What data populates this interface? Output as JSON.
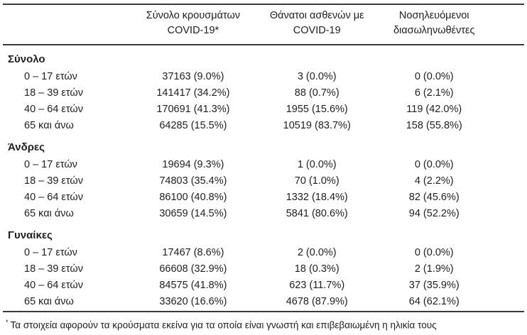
{
  "page": {
    "background": "#ffffff",
    "text_color": "#1f1f1f",
    "rule_color": "#3a3a3a"
  },
  "table": {
    "column_headers": [
      {
        "line1": "Σύνολο κρουσμάτων",
        "line2": "COVID-19*"
      },
      {
        "line1": "Θάνατοι ασθενών με",
        "line2": "COVID-19"
      },
      {
        "line1": "Νοσηλευόμενοι",
        "line2": "διασωληνωθέντες"
      }
    ],
    "groups": [
      {
        "label": "Σύνολο",
        "rows": [
          {
            "age": "0 – 17 ετών",
            "cases": "37163 (9.0%)",
            "deaths": "3 (0.0%)",
            "intubated": "0 (0.0%)"
          },
          {
            "age": "18 – 39 ετών",
            "cases": "141417 (34.2%)",
            "deaths": "88 (0.7%)",
            "intubated": "6 (2.1%)"
          },
          {
            "age": "40 – 64 ετών",
            "cases": "170691 (41.3%)",
            "deaths": "1955 (15.6%)",
            "intubated": "119 (42.0%)"
          },
          {
            "age": "65 και άνω",
            "cases": "64285 (15.5%)",
            "deaths": "10519 (83.7%)",
            "intubated": "158 (55.8%)"
          }
        ]
      },
      {
        "label": "Άνδρες",
        "rows": [
          {
            "age": "0 – 17 ετών",
            "cases": "19694 (9.3%)",
            "deaths": "1 (0.0%)",
            "intubated": "0 (0.0%)"
          },
          {
            "age": "18 – 39 ετών",
            "cases": "74803 (35.4%)",
            "deaths": "70 (1.0%)",
            "intubated": "4 (2.2%)"
          },
          {
            "age": "40 – 64 ετών",
            "cases": "86100 (40.8%)",
            "deaths": "1332 (18.4%)",
            "intubated": "82 (45.6%)"
          },
          {
            "age": "65 και άνω",
            "cases": "30659 (14.5%)",
            "deaths": "5841 (80.6%)",
            "intubated": "94 (52.2%)"
          }
        ]
      },
      {
        "label": "Γυναίκες",
        "rows": [
          {
            "age": "0 – 17 ετών",
            "cases": "17467 (8.6%)",
            "deaths": "2 (0.0%)",
            "intubated": "0 (0.0%)"
          },
          {
            "age": "18 – 39 ετών",
            "cases": "66608 (32.9%)",
            "deaths": "18 (0.3%)",
            "intubated": "2 (1.9%)"
          },
          {
            "age": "40 – 64 ετών",
            "cases": "84575 (41.8%)",
            "deaths": "623 (11.7%)",
            "intubated": "37 (35.9%)"
          },
          {
            "age": "65 και άνω",
            "cases": "33620 (16.6%)",
            "deaths": "4678 (87.9%)",
            "intubated": "64 (62.1%)"
          }
        ]
      }
    ],
    "footnote": {
      "marker": "*",
      "text": "Τα στοιχεία αφορούν τα κρούσματα εκείνα για τα οποία είναι γνωστή και επιβεβαιωμένη η ηλικία τους"
    }
  }
}
